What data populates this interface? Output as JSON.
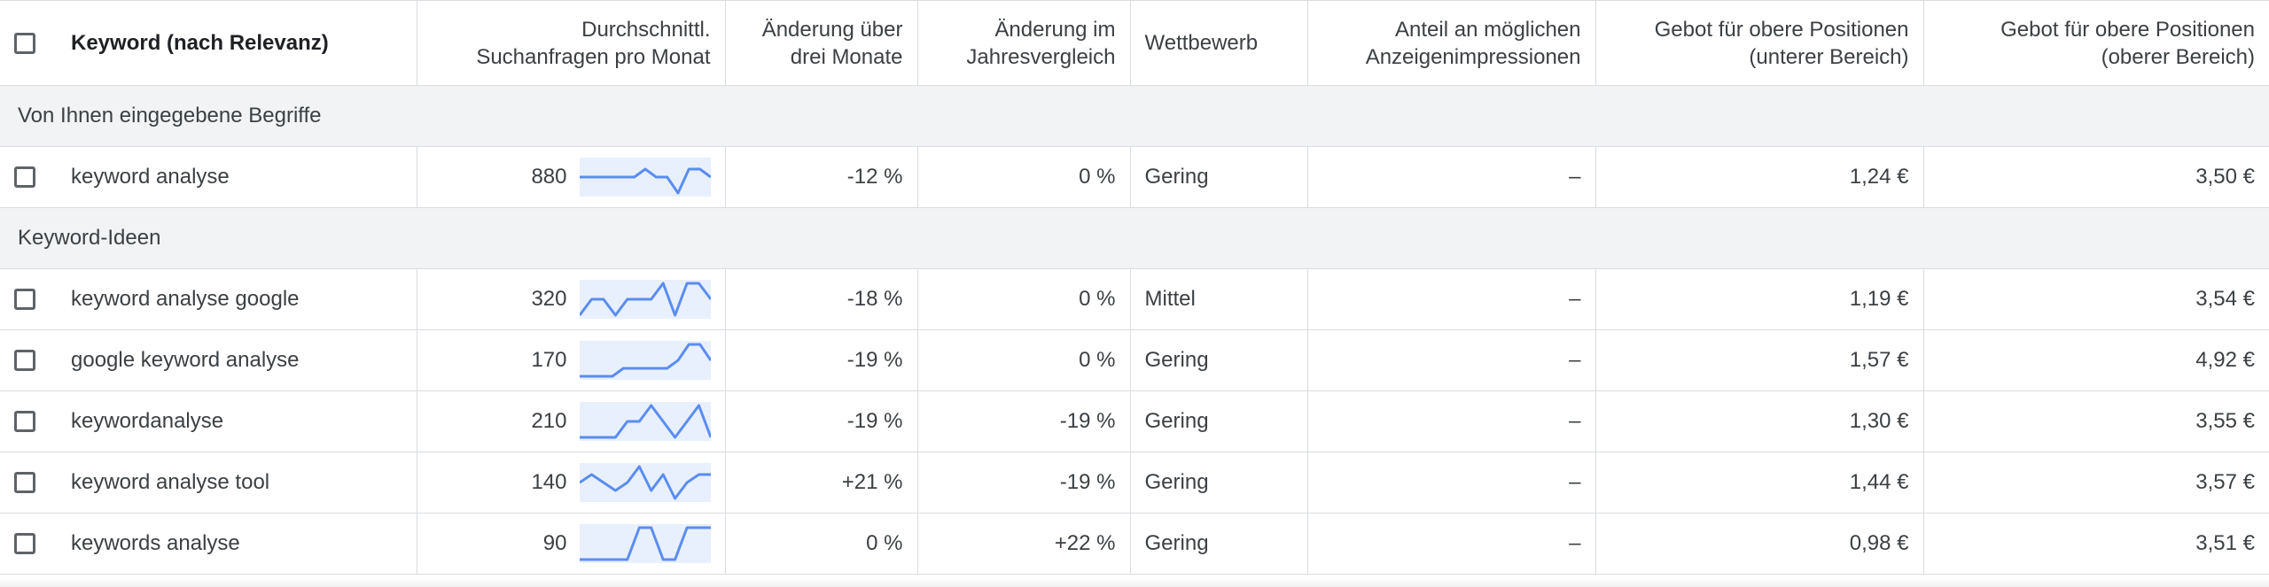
{
  "colors": {
    "sparkline_stroke": "#5b8def",
    "sparkline_fill": "#e8f0fe",
    "border": "#dadce0",
    "group_bg": "#f1f3f4"
  },
  "header": {
    "keyword": "Keyword (nach Relevanz)",
    "searches": [
      "Durchschnittl.",
      "Suchanfragen pro Monat"
    ],
    "three_month": [
      "Änderung über",
      "drei Monate"
    ],
    "yoy": [
      "Änderung im",
      "Jahresvergleich"
    ],
    "competition": "Wettbewerb",
    "impression_share": [
      "Anteil an möglichen",
      "Anzeigenimpressionen"
    ],
    "bid_low": [
      "Gebot für obere Positionen",
      "(unterer Bereich)"
    ],
    "bid_high": [
      "Gebot für obere Positionen",
      "(oberer Bereich)"
    ]
  },
  "groups": {
    "entered": "Von Ihnen eingegebene Begriffe",
    "ideas": "Keyword-Ideen"
  },
  "entered_rows": [
    {
      "keyword": "keyword analyse",
      "searches": "880",
      "trend": [
        2,
        2,
        2,
        2,
        2,
        2,
        3,
        2,
        2,
        0,
        3,
        3,
        2
      ],
      "three_month": "-12 %",
      "yoy": "0 %",
      "competition": "Gering",
      "impression_share": "–",
      "bid_low": "1,24 €",
      "bid_high": "3,50 €"
    }
  ],
  "idea_rows": [
    {
      "keyword": "keyword analyse google",
      "searches": "320",
      "trend": [
        0,
        2,
        2,
        0,
        2,
        2,
        2,
        4,
        0,
        4,
        4,
        2
      ],
      "three_month": "-18 %",
      "yoy": "0 %",
      "competition": "Mittel",
      "impression_share": "–",
      "bid_low": "1,19 €",
      "bid_high": "3,54 €"
    },
    {
      "keyword": "google keyword analyse",
      "searches": "170",
      "trend": [
        0,
        0,
        0,
        0,
        1,
        1,
        1,
        1,
        1,
        2,
        4,
        4,
        2
      ],
      "three_month": "-19 %",
      "yoy": "0 %",
      "competition": "Gering",
      "impression_share": "–",
      "bid_low": "1,57 €",
      "bid_high": "4,92 €"
    },
    {
      "keyword": "keywordanalyse",
      "searches": "210",
      "trend": [
        0,
        0,
        0,
        0,
        2,
        2,
        4,
        2,
        0,
        2,
        4,
        0
      ],
      "three_month": "-19 %",
      "yoy": "-19 %",
      "competition": "Gering",
      "impression_share": "–",
      "bid_low": "1,30 €",
      "bid_high": "3,55 €"
    },
    {
      "keyword": "keyword analyse tool",
      "searches": "140",
      "trend": [
        2,
        3,
        2,
        1,
        2,
        4,
        1,
        3,
        0,
        2,
        3,
        3
      ],
      "three_month": "+21 %",
      "yoy": "-19 %",
      "competition": "Gering",
      "impression_share": "–",
      "bid_low": "1,44 €",
      "bid_high": "3,57 €"
    },
    {
      "keyword": "keywords analyse",
      "searches": "90",
      "trend": [
        0,
        0,
        0,
        0,
        0,
        4,
        4,
        0,
        0,
        4,
        4,
        4
      ],
      "three_month": "0 %",
      "yoy": "+22 %",
      "competition": "Gering",
      "impression_share": "–",
      "bid_low": "0,98 €",
      "bid_high": "3,51 €"
    }
  ]
}
